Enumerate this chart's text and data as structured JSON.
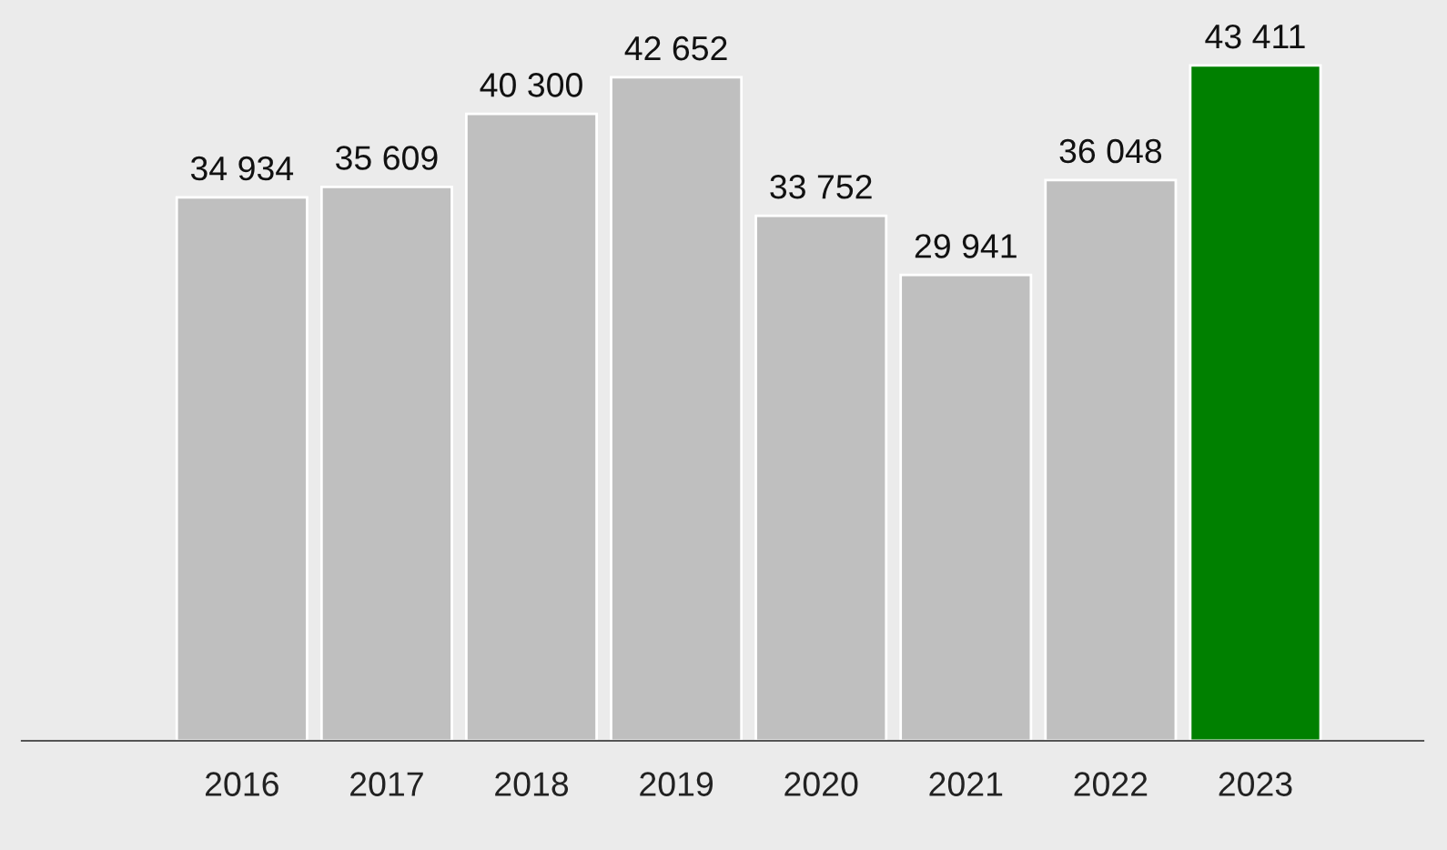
{
  "chart_data": {
    "type": "bar",
    "categories": [
      "2016",
      "2017",
      "2018",
      "2019",
      "2020",
      "2021",
      "2022",
      "2023"
    ],
    "values": [
      34934,
      35609,
      40300,
      42652,
      33752,
      29941,
      36048,
      43411
    ],
    "value_labels": [
      "34 934",
      "35 609",
      "40 300",
      "42 652",
      "33 752",
      "29 941",
      "36 048",
      "43 411"
    ],
    "colors": [
      "#bfbfbf",
      "#bfbfbf",
      "#bfbfbf",
      "#bfbfbf",
      "#bfbfbf",
      "#bfbfbf",
      "#bfbfbf",
      "#008000"
    ],
    "grid": false,
    "legend": false
  }
}
